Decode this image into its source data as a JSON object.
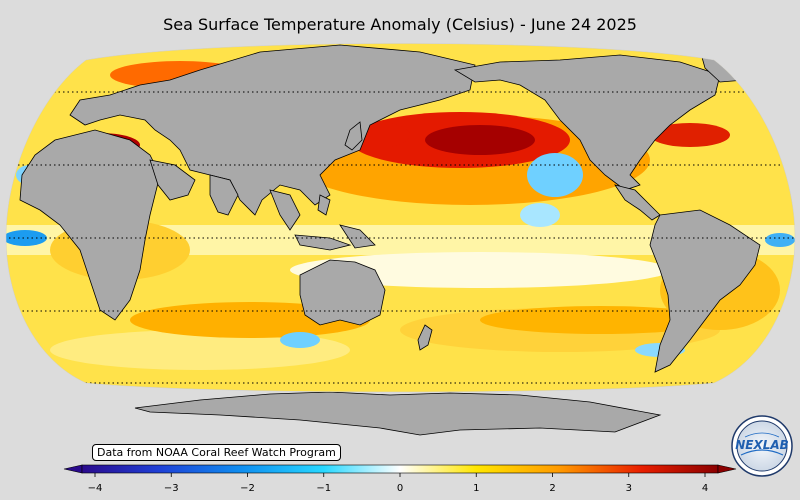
{
  "title": "Sea Surface Temperature Anomaly (Celsius) - June 24 2025",
  "credit": "Data from NOAA Coral Reef Watch Program",
  "logo_text": "NEXLAB",
  "colorbar": {
    "min": -4,
    "max": 4,
    "ticks": [
      {
        "value": -4,
        "label": "−4"
      },
      {
        "value": -3,
        "label": "−3"
      },
      {
        "value": -2,
        "label": "−2"
      },
      {
        "value": -1,
        "label": "−1"
      },
      {
        "value": 0,
        "label": "0"
      },
      {
        "value": 1,
        "label": "1"
      },
      {
        "value": 2,
        "label": "2"
      },
      {
        "value": 3,
        "label": "3"
      },
      {
        "value": 4,
        "label": "4"
      }
    ],
    "colors": [
      "#2a0a8c",
      "#1f3fd6",
      "#0f8ef0",
      "#28d8ff",
      "#ffffff",
      "#ffe600",
      "#ff9a00",
      "#e81e00",
      "#8b0000"
    ]
  },
  "colors": {
    "land": "#a9a9a9",
    "background": "#dcdcdc",
    "warm_anomaly": "#d40000",
    "cool_anomaly": "#3fb8ff",
    "neutral": "#ffffff"
  }
}
